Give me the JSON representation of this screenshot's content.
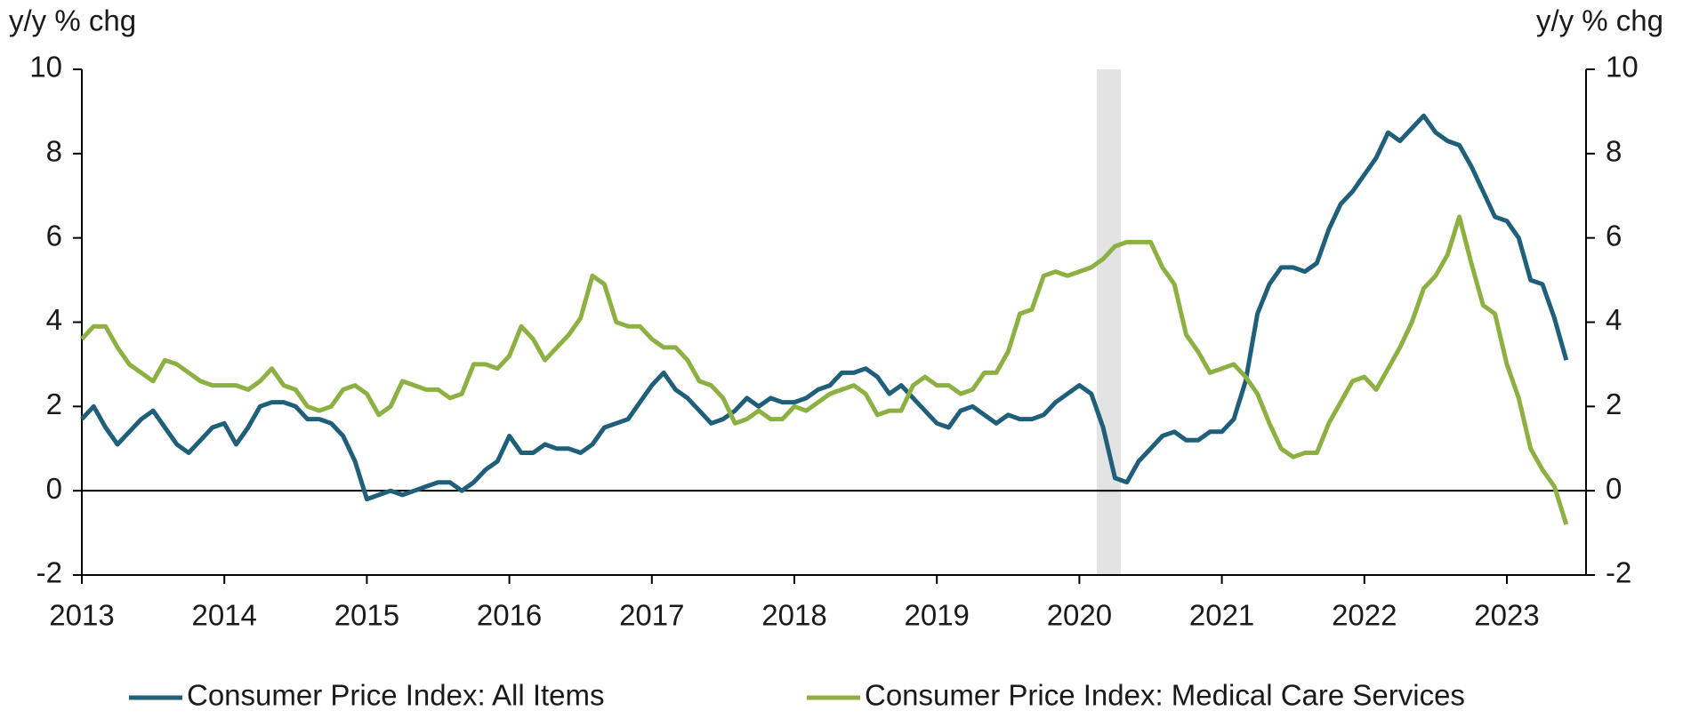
{
  "chart_data": {
    "type": "line",
    "ylabel": "y/y % chg",
    "y2label": "y/y % chg",
    "categories": [
      "2013",
      null,
      null,
      null,
      null,
      null,
      null,
      null,
      null,
      null,
      null,
      null,
      "2014",
      null,
      null,
      null,
      null,
      null,
      null,
      null,
      null,
      null,
      null,
      null,
      "2015",
      null,
      null,
      null,
      null,
      null,
      null,
      null,
      null,
      null,
      null,
      null,
      "2016",
      null,
      null,
      null,
      null,
      null,
      null,
      null,
      null,
      null,
      null,
      null,
      "2017",
      null,
      null,
      null,
      null,
      null,
      null,
      null,
      null,
      null,
      null,
      null,
      "2018",
      null,
      null,
      null,
      null,
      null,
      null,
      null,
      null,
      null,
      null,
      null,
      "2019",
      null,
      null,
      null,
      null,
      null,
      null,
      null,
      null,
      null,
      null,
      null,
      "2020",
      null,
      null,
      null,
      null,
      null,
      null,
      null,
      null,
      null,
      null,
      null,
      "2021",
      null,
      null,
      null,
      null,
      null,
      null,
      null,
      null,
      null,
      null,
      null,
      "2022",
      null,
      null,
      null,
      null,
      null,
      null,
      null,
      null,
      null,
      null,
      null,
      "2023",
      null,
      null,
      null,
      null,
      null
    ],
    "series": [
      {
        "name": "Consumer Price Index: All Items",
        "color": "#1f5f7a",
        "values": [
          1.7,
          2.0,
          1.5,
          1.1,
          1.4,
          1.7,
          1.9,
          1.5,
          1.1,
          0.9,
          1.2,
          1.5,
          1.6,
          1.1,
          1.5,
          2.0,
          2.1,
          2.1,
          2.0,
          1.7,
          1.7,
          1.6,
          1.3,
          0.7,
          -0.2,
          -0.1,
          0.0,
          -0.1,
          0.0,
          0.1,
          0.2,
          0.2,
          0.0,
          0.2,
          0.5,
          0.7,
          1.3,
          0.9,
          0.9,
          1.1,
          1.0,
          1.0,
          0.9,
          1.1,
          1.5,
          1.6,
          1.7,
          2.1,
          2.5,
          2.8,
          2.4,
          2.2,
          1.9,
          1.6,
          1.7,
          1.9,
          2.2,
          2.0,
          2.2,
          2.1,
          2.1,
          2.2,
          2.4,
          2.5,
          2.8,
          2.8,
          2.9,
          2.7,
          2.3,
          2.5,
          2.2,
          1.9,
          1.6,
          1.5,
          1.9,
          2.0,
          1.8,
          1.6,
          1.8,
          1.7,
          1.7,
          1.8,
          2.1,
          2.3,
          2.5,
          2.3,
          1.5,
          0.3,
          0.2,
          0.7,
          1.0,
          1.3,
          1.4,
          1.2,
          1.2,
          1.4,
          1.4,
          1.7,
          2.6,
          4.2,
          4.9,
          5.3,
          5.3,
          5.2,
          5.4,
          6.2,
          6.8,
          7.1,
          7.5,
          7.9,
          8.5,
          8.3,
          8.6,
          8.9,
          8.5,
          8.3,
          8.2,
          7.7,
          7.1,
          6.5,
          6.4,
          6.0,
          5.0,
          4.9,
          4.1,
          3.1
        ]
      },
      {
        "name": "Consumer Price Index: Medical Care Services",
        "color": "#8db042",
        "values": [
          3.6,
          3.9,
          3.9,
          3.4,
          3.0,
          2.8,
          2.6,
          3.1,
          3.0,
          2.8,
          2.6,
          2.5,
          2.5,
          2.5,
          2.4,
          2.6,
          2.9,
          2.5,
          2.4,
          2.0,
          1.9,
          2.0,
          2.4,
          2.5,
          2.3,
          1.8,
          2.0,
          2.6,
          2.5,
          2.4,
          2.4,
          2.2,
          2.3,
          3.0,
          3.0,
          2.9,
          3.2,
          3.9,
          3.6,
          3.1,
          3.4,
          3.7,
          4.1,
          5.1,
          4.9,
          4.0,
          3.9,
          3.9,
          3.6,
          3.4,
          3.4,
          3.1,
          2.6,
          2.5,
          2.2,
          1.6,
          1.7,
          1.9,
          1.7,
          1.7,
          2.0,
          1.9,
          2.1,
          2.3,
          2.4,
          2.5,
          2.3,
          1.8,
          1.9,
          1.9,
          2.5,
          2.7,
          2.5,
          2.5,
          2.3,
          2.4,
          2.8,
          2.8,
          3.3,
          4.2,
          4.3,
          5.1,
          5.2,
          5.1,
          5.2,
          5.3,
          5.5,
          5.8,
          5.9,
          5.9,
          5.9,
          5.3,
          4.9,
          3.7,
          3.3,
          2.8,
          2.9,
          3.0,
          2.7,
          2.3,
          1.6,
          1.0,
          0.8,
          0.9,
          0.9,
          1.6,
          2.1,
          2.6,
          2.7,
          2.4,
          2.9,
          3.4,
          4.0,
          4.8,
          5.1,
          5.6,
          6.5,
          5.4,
          4.4,
          4.2,
          3.0,
          2.2,
          1.0,
          0.5,
          0.1,
          -0.8
        ]
      }
    ],
    "ylim": [
      -2,
      10
    ],
    "yticks": [
      -2,
      0,
      2,
      4,
      6,
      8,
      10
    ],
    "y2lim": [
      -2,
      10
    ],
    "y2ticks": [
      -2,
      0,
      2,
      4,
      6,
      8,
      10
    ],
    "grid": false,
    "legend": "bottom"
  }
}
